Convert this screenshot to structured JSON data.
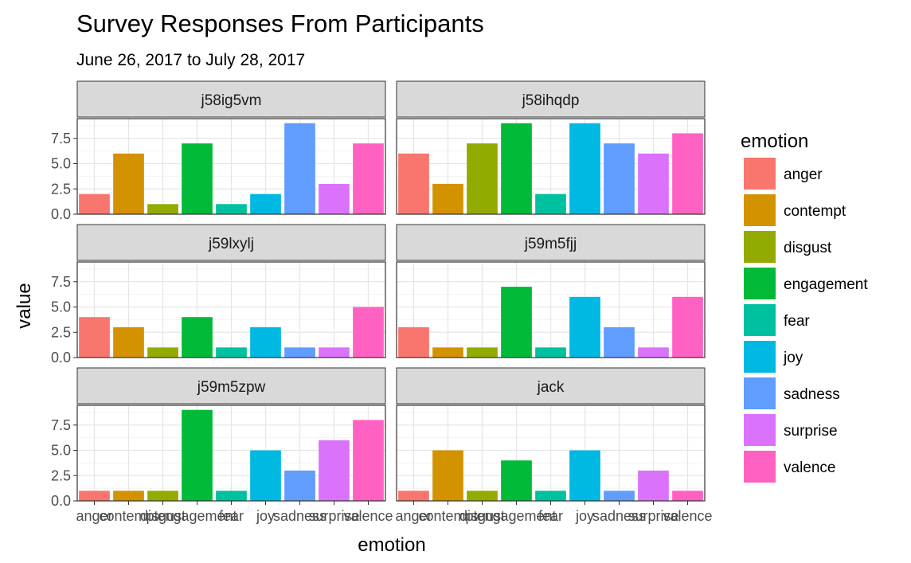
{
  "chart_data": {
    "type": "bar",
    "title": "Survey Responses From Participants",
    "subtitle": "June 26, 2017 to July 28, 2017",
    "xlabel": "emotion",
    "ylabel": "value",
    "ylim": [
      0,
      9.45
    ],
    "yticks": [
      0.0,
      2.5,
      5.0,
      7.5
    ],
    "ytick_labels": [
      "0.0",
      "2.5",
      "5.0",
      "7.5"
    ],
    "grid": true,
    "legend_position": "right",
    "legend_title": "emotion",
    "categories": [
      "anger",
      "contempt",
      "disgust",
      "engagement",
      "fear",
      "joy",
      "sadness",
      "surprise",
      "valence"
    ],
    "colors": [
      "#F8766D",
      "#D39200",
      "#93AA00",
      "#00BA38",
      "#00C19F",
      "#00B9E3",
      "#619CFF",
      "#DB72FB",
      "#FF61C3"
    ],
    "panels": [
      {
        "name": "j58ig5vm",
        "values": [
          2,
          6,
          1,
          7,
          1,
          2,
          9,
          3,
          7
        ]
      },
      {
        "name": "j58ihqdp",
        "values": [
          6,
          3,
          7,
          9,
          2,
          9,
          7,
          6,
          8
        ]
      },
      {
        "name": "j59lxylj",
        "values": [
          4,
          3,
          1,
          4,
          1,
          3,
          1,
          1,
          5
        ]
      },
      {
        "name": "j59m5fjj",
        "values": [
          3,
          1,
          1,
          7,
          1,
          6,
          3,
          1,
          6
        ]
      },
      {
        "name": "j59m5zpw",
        "values": [
          1,
          1,
          1,
          9,
          1,
          5,
          3,
          6,
          8
        ]
      },
      {
        "name": "jack",
        "values": [
          1,
          5,
          1,
          4,
          1,
          5,
          1,
          3,
          1
        ]
      }
    ]
  }
}
